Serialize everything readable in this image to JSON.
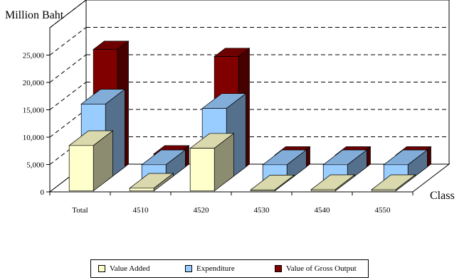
{
  "chart_data": {
    "type": "bar",
    "title": "",
    "ylabel": "Million Baht",
    "xlabel": "Class",
    "categories": [
      "Total",
      "4510",
      "4520",
      "4530",
      "4540",
      "4550"
    ],
    "series": [
      {
        "name": "Value Added",
        "color": "#ffffcc",
        "values": [
          8300,
          500,
          7800,
          200,
          250,
          250
        ]
      },
      {
        "name": "Expenditure",
        "color": "#99ccff",
        "values": [
          14200,
          3100,
          13400,
          3100,
          3100,
          3100
        ]
      },
      {
        "name": "Value of Gross Output",
        "color": "#800000",
        "values": [
          22500,
          3400,
          21200,
          3200,
          3200,
          3200
        ]
      }
    ],
    "yticks": [
      "0",
      "5,000",
      "10,000",
      "15,000",
      "20,000",
      "25,000"
    ],
    "ylim": [
      0,
      30000
    ],
    "grid": true,
    "legend_position": "bottom"
  }
}
